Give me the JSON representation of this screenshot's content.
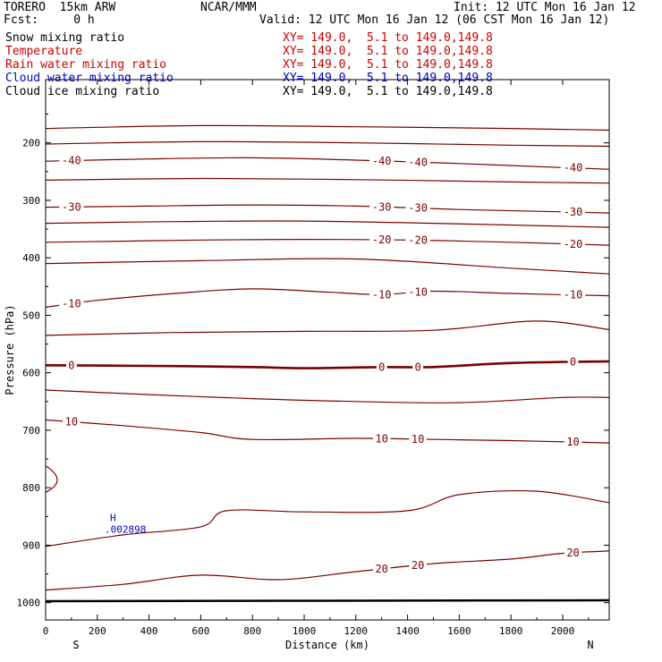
{
  "header": {
    "model": "TORERO  15km ARW",
    "org": "NCAR/MMM",
    "init": "Init: 12 UTC Mon 16 Jan 12",
    "fcst": "Fcst:     0 h",
    "valid": "Valid: 12 UTC Mon 16 Jan 12 (06 CST Mon 16 Jan 12)"
  },
  "fields": [
    {
      "name": "Snow mixing ratio",
      "xy": "",
      "color": "#000000"
    },
    {
      "name": "Temperature",
      "xy": "XY= 149.0,  5.1 to 149.0,149.8",
      "color": "#cc0000"
    },
    {
      "name": "Rain water mixing ratio",
      "xy": "XY= 149.0,  5.1 to 149.0,149.8",
      "color": "#cc0000"
    },
    {
      "name": "Cloud water mixing ratio",
      "xy": "XY= 149.0,  5.1 to 149.0,149.8",
      "color": "#0000cc"
    },
    {
      "name": "Cloud ice mixing ratio",
      "xy": "XY= 149.0,  5.1 to 149.0,149.8",
      "color": "#000000"
    }
  ],
  "snow_xy": "XY= 149.0,  5.1 to 149.0,149.8",
  "chart_data": {
    "type": "contour",
    "xlabel": "Distance (km)",
    "ylabel": "Pressure (hPa)",
    "xlim": [
      0,
      2180
    ],
    "ylim": [
      1030,
      90
    ],
    "x_ticks": [
      0,
      200,
      400,
      600,
      800,
      1000,
      1200,
      1400,
      1600,
      1800,
      2000
    ],
    "y_ticks": [
      200,
      300,
      400,
      500,
      600,
      700,
      800,
      900,
      1000
    ],
    "x_end_labels": {
      "left": "S",
      "right": "N"
    },
    "contour_color": "#7a0000",
    "temperature_contours": [
      {
        "value": -40,
        "points": [
          [
            0,
            232
          ],
          [
            400,
            228
          ],
          [
            800,
            226
          ],
          [
            1200,
            230
          ],
          [
            1600,
            236
          ],
          [
            2000,
            243
          ],
          [
            2180,
            246
          ]
        ]
      },
      {
        "value": -30,
        "points": [
          [
            0,
            312
          ],
          [
            400,
            310
          ],
          [
            800,
            308
          ],
          [
            1200,
            310
          ],
          [
            1600,
            316
          ],
          [
            2000,
            320
          ],
          [
            2180,
            322
          ]
        ]
      },
      {
        "value": -20,
        "points": [
          [
            0,
            373
          ],
          [
            300,
            371
          ],
          [
            600,
            369
          ],
          [
            1000,
            368
          ],
          [
            1400,
            369
          ],
          [
            1800,
            373
          ],
          [
            2180,
            378
          ]
        ]
      },
      {
        "value": -10,
        "points": [
          [
            0,
            486
          ],
          [
            200,
            474
          ],
          [
            500,
            462
          ],
          [
            800,
            454
          ],
          [
            1100,
            460
          ],
          [
            1300,
            464
          ],
          [
            1500,
            458
          ],
          [
            1800,
            462
          ],
          [
            2180,
            466
          ]
        ]
      },
      {
        "value": 0,
        "points": [
          [
            0,
            587
          ],
          [
            400,
            588
          ],
          [
            800,
            590
          ],
          [
            1000,
            592
          ],
          [
            1300,
            590
          ],
          [
            1500,
            590
          ],
          [
            1800,
            583
          ],
          [
            2180,
            580
          ]
        ]
      },
      {
        "value": 10,
        "points": [
          [
            0,
            682
          ],
          [
            300,
            692
          ],
          [
            600,
            704
          ],
          [
            800,
            716
          ],
          [
            1200,
            714
          ],
          [
            1500,
            716
          ],
          [
            1800,
            718
          ],
          [
            2180,
            722
          ]
        ]
      },
      {
        "value": 20,
        "points": [
          [
            0,
            978
          ],
          [
            300,
            968
          ],
          [
            600,
            952
          ],
          [
            900,
            960
          ],
          [
            1200,
            946
          ],
          [
            1500,
            932
          ],
          [
            1800,
            924
          ],
          [
            2000,
            914
          ],
          [
            2180,
            910
          ]
        ]
      }
    ],
    "other_contours": [
      {
        "value": null,
        "points": [
          [
            0,
            175
          ],
          [
            600,
            170
          ],
          [
            1200,
            172
          ],
          [
            1800,
            175
          ],
          [
            2180,
            178
          ]
        ]
      },
      {
        "value": null,
        "points": [
          [
            0,
            202
          ],
          [
            600,
            198
          ],
          [
            1200,
            200
          ],
          [
            1800,
            204
          ],
          [
            2180,
            206
          ]
        ]
      },
      {
        "value": null,
        "points": [
          [
            0,
            265
          ],
          [
            600,
            262
          ],
          [
            1200,
            264
          ],
          [
            1800,
            268
          ],
          [
            2180,
            270
          ]
        ]
      },
      {
        "value": null,
        "points": [
          [
            0,
            340
          ],
          [
            500,
            337
          ],
          [
            1000,
            336
          ],
          [
            1500,
            340
          ],
          [
            2000,
            345
          ],
          [
            2180,
            347
          ]
        ]
      },
      {
        "value": null,
        "points": [
          [
            0,
            410
          ],
          [
            600,
            405
          ],
          [
            1200,
            402
          ],
          [
            1800,
            418
          ],
          [
            2180,
            428
          ]
        ]
      },
      {
        "value": null,
        "points": [
          [
            0,
            535
          ],
          [
            500,
            530
          ],
          [
            1000,
            528
          ],
          [
            1500,
            526
          ],
          [
            1900,
            510
          ],
          [
            2180,
            525
          ]
        ]
      },
      {
        "value": null,
        "points": [
          [
            0,
            630
          ],
          [
            400,
            638
          ],
          [
            800,
            645
          ],
          [
            1200,
            650
          ],
          [
            1600,
            652
          ],
          [
            2000,
            643
          ],
          [
            2180,
            643
          ]
        ]
      },
      {
        "value": null,
        "points": [
          [
            0,
            902
          ],
          [
            300,
            882
          ],
          [
            600,
            868
          ],
          [
            700,
            840
          ],
          [
            1000,
            842
          ],
          [
            1400,
            840
          ],
          [
            1600,
            812
          ],
          [
            1900,
            806
          ],
          [
            2180,
            826
          ]
        ]
      }
    ],
    "cloud_water_max": {
      "label": "H",
      "value": ".002898",
      "x": 270,
      "y": 858
    }
  }
}
